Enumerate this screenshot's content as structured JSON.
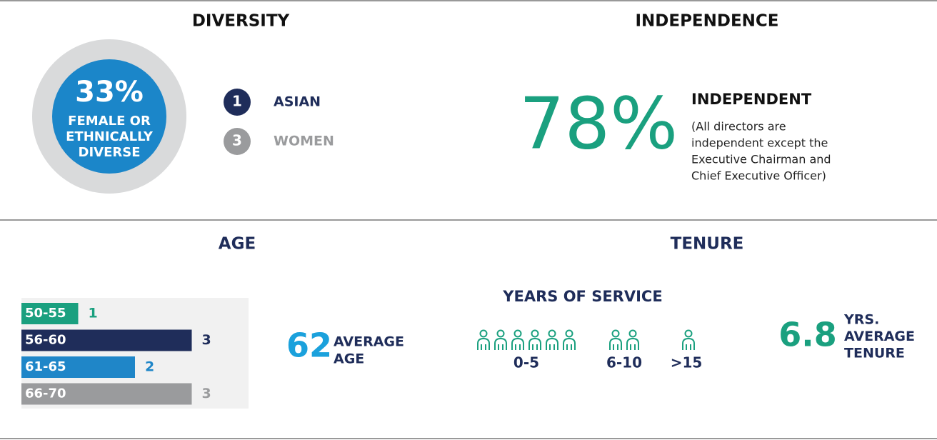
{
  "diversity": {
    "title": "DIVERSITY",
    "percent": "33%",
    "caption": [
      "FEMALE OR",
      "ETHNICALLY",
      "DIVERSE"
    ],
    "items": [
      {
        "count": "1",
        "label": "ASIAN",
        "color": "#1f2d5a"
      },
      {
        "count": "3",
        "label": "WOMEN",
        "color": "#9a9b9d"
      }
    ]
  },
  "independence": {
    "title": "INDEPENDENCE",
    "percent": "78%",
    "label": "INDEPENDENT",
    "note": [
      "(All directors are",
      "independent except the",
      "Executive Chairman and",
      "Chief Executive Officer)"
    ]
  },
  "age": {
    "title": "AGE",
    "categories": [
      "50-55",
      "56-60",
      "61-65",
      "66-70"
    ],
    "values": [
      1,
      3,
      2,
      3
    ],
    "colors": [
      "#1aa07f",
      "#1f2d5a",
      "#1f86c8",
      "#9a9b9d"
    ],
    "xlim": [
      0,
      4
    ],
    "average": "62",
    "average_label": [
      "AVERAGE",
      "AGE"
    ]
  },
  "tenure": {
    "title": "TENURE",
    "subtitle": "YEARS OF SERVICE",
    "groups": [
      {
        "label": "0-5",
        "count": 6
      },
      {
        "label": "6-10",
        "count": 2
      },
      {
        "label": ">15",
        "count": 1
      }
    ],
    "average": "6.8",
    "average_label": [
      "YRS.",
      "AVERAGE",
      "TENURE"
    ]
  }
}
